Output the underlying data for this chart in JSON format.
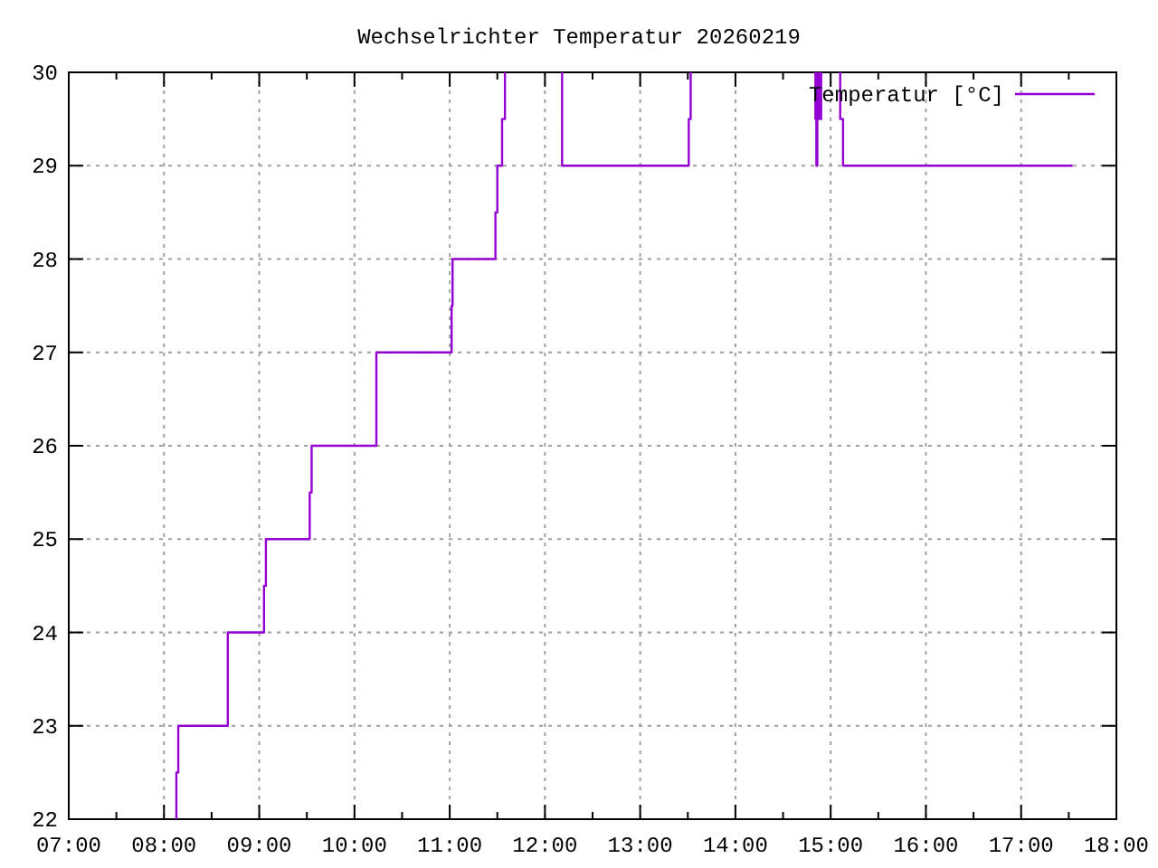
{
  "chart_data": {
    "type": "line",
    "title": "Wechselrichter Temperatur 20260219",
    "xlim": [
      7,
      18
    ],
    "xticks": [
      {
        "value": 7,
        "label": "07:00"
      },
      {
        "value": 7.5,
        "label": null
      },
      {
        "value": 8,
        "label": "08:00"
      },
      {
        "value": 8.5,
        "label": null
      },
      {
        "value": 9,
        "label": "09:00"
      },
      {
        "value": 9.5,
        "label": null
      },
      {
        "value": 10,
        "label": "10:00"
      },
      {
        "value": 10.5,
        "label": null
      },
      {
        "value": 11,
        "label": "11:00"
      },
      {
        "value": 11.5,
        "label": null
      },
      {
        "value": 12,
        "label": "12:00"
      },
      {
        "value": 12.5,
        "label": null
      },
      {
        "value": 13,
        "label": "13:00"
      },
      {
        "value": 13.5,
        "label": null
      },
      {
        "value": 14,
        "label": "14:00"
      },
      {
        "value": 14.5,
        "label": null
      },
      {
        "value": 15,
        "label": "15:00"
      },
      {
        "value": 15.5,
        "label": null
      },
      {
        "value": 16,
        "label": "16:00"
      },
      {
        "value": 16.5,
        "label": null
      },
      {
        "value": 17,
        "label": "17:00"
      },
      {
        "value": 17.5,
        "label": null
      },
      {
        "value": 18,
        "label": "18:00"
      }
    ],
    "ylim": [
      22,
      30
    ],
    "yticks": [
      22,
      23,
      24,
      25,
      26,
      27,
      28,
      29,
      30
    ],
    "grid": true,
    "legend": "top right",
    "line_style": "solid",
    "marker": "none",
    "series": [
      {
        "name": "Temperatur [°C]",
        "color": "#9400d3",
        "x": [
          8.13,
          8.13,
          8.15,
          8.15,
          8.67,
          8.67,
          9.05,
          9.05,
          9.07,
          9.07,
          9.53,
          9.53,
          9.55,
          9.55,
          10.23,
          10.23,
          11.02,
          11.02,
          11.03,
          11.03,
          11.48,
          11.48,
          11.5,
          11.5,
          11.55,
          11.55,
          11.58,
          11.58,
          null,
          12.18,
          12.18,
          13.51,
          13.51,
          13.53,
          13.53,
          null,
          14.84,
          14.84,
          14.85,
          14.85,
          14.86,
          14.86,
          null,
          14.88,
          14.88,
          14.9,
          14.9,
          null,
          15.1,
          15.1,
          15.13,
          15.13,
          17.54
        ],
        "values": [
          22,
          22.5,
          22.5,
          23,
          23,
          24,
          24,
          24.5,
          24.5,
          25,
          25,
          25.5,
          25.5,
          26,
          26,
          27,
          27,
          27.5,
          27.5,
          28,
          28,
          28.5,
          28.5,
          29,
          29,
          29.5,
          29.5,
          30,
          null,
          30,
          29,
          29,
          29.5,
          29.5,
          30,
          null,
          30,
          29.5,
          29.5,
          29,
          29,
          30,
          null,
          30,
          29.5,
          29.5,
          30,
          null,
          30,
          29.5,
          29.5,
          29,
          29
        ]
      }
    ]
  }
}
